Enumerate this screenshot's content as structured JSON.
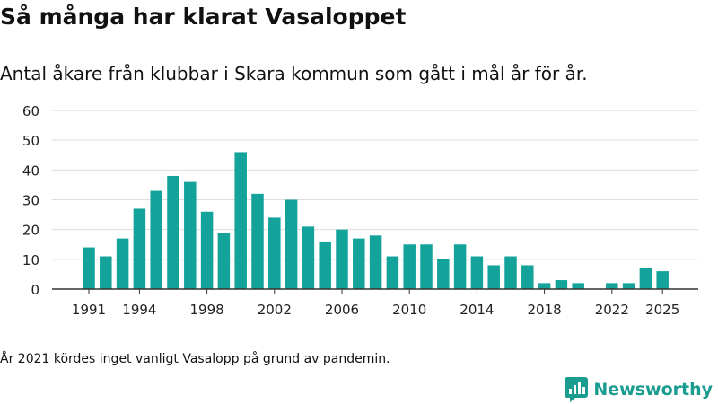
{
  "header": {
    "title": "Så många har klarat Vasaloppet",
    "subtitle": "Antal åkare från klubbar i Skara kommun som gått i mål år för år."
  },
  "footer": {
    "note": "År 2021 kördes inget vanligt Vasalopp på grund av pandemin.",
    "brand": "Newsworthy"
  },
  "colors": {
    "bar": "#14a39a",
    "grid": "#dddddd",
    "axis": "#333333",
    "brand": "#1a9c91"
  },
  "chart_data": {
    "type": "bar",
    "title": "Så många har klarat Vasaloppet",
    "subtitle": "Antal åkare från klubbar i Skara kommun som gått i mål år för år.",
    "categories": [
      1991,
      1992,
      1993,
      1994,
      1995,
      1996,
      1997,
      1998,
      1999,
      2000,
      2001,
      2002,
      2003,
      2004,
      2005,
      2006,
      2007,
      2008,
      2009,
      2010,
      2011,
      2012,
      2013,
      2014,
      2015,
      2016,
      2017,
      2018,
      2019,
      2020,
      2021,
      2022,
      2023,
      2024,
      2025
    ],
    "values": [
      14,
      11,
      17,
      27,
      33,
      38,
      36,
      26,
      19,
      46,
      32,
      24,
      30,
      21,
      16,
      20,
      17,
      18,
      11,
      15,
      15,
      10,
      15,
      11,
      8,
      11,
      8,
      2,
      3,
      2,
      null,
      2,
      2,
      7,
      6
    ],
    "ylim": [
      0,
      60
    ],
    "yticks": [
      0,
      10,
      20,
      30,
      40,
      50,
      60
    ],
    "xtick_labels": [
      "1991",
      "1994",
      "1998",
      "2002",
      "2006",
      "2010",
      "2014",
      "2018",
      "2022",
      "2025"
    ],
    "grid": true
  }
}
